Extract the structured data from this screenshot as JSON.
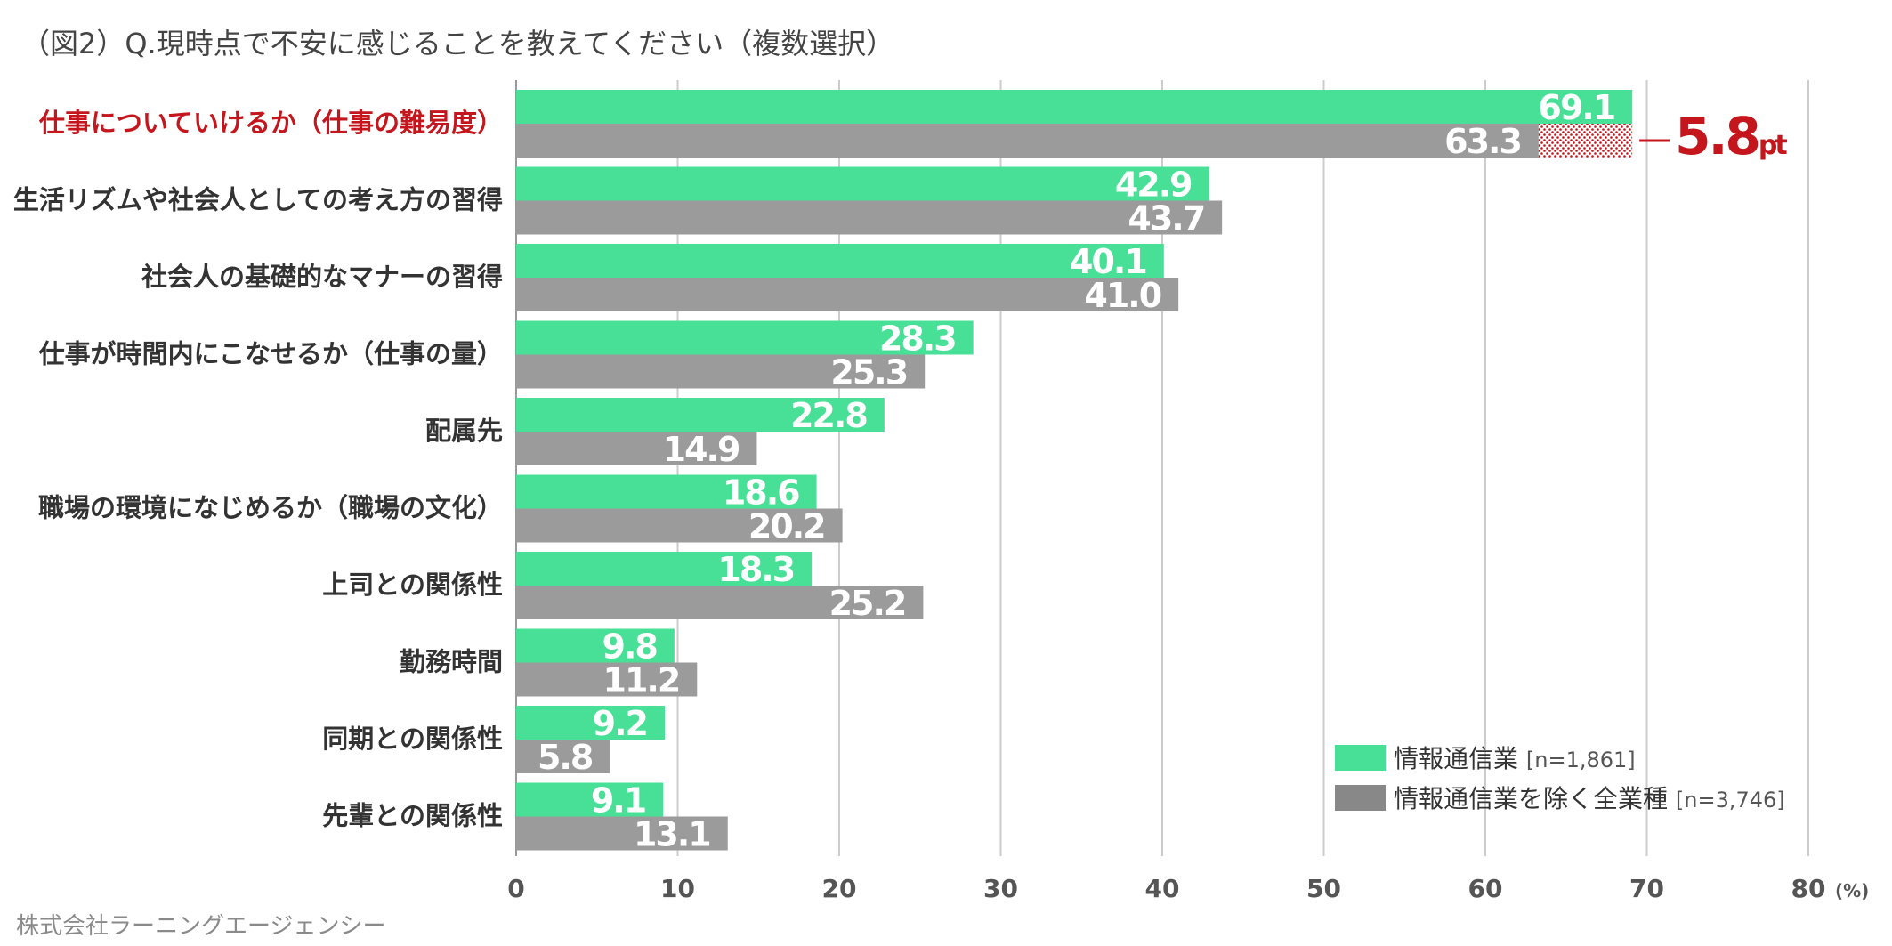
{
  "title": "（図2）Q.現時点で不安に感じることを教えてください（複数選択）",
  "credit": "株式会社ラーニングエージェンシー",
  "colors": {
    "series1": "#48e096",
    "series2": "#9b9b9b",
    "legend2": "#888888",
    "highlight": "#c4161c",
    "grid": "#cccccc"
  },
  "chart_data": {
    "type": "bar",
    "orientation": "horizontal",
    "categories": [
      "仕事についていけるか（仕事の難易度）",
      "生活リズムや社会人としての考え方の習得",
      "社会人の基礎的なマナーの習得",
      "仕事が時間内にこなせるか（仕事の量）",
      "配属先",
      "職場の環境になじめるか（職場の文化）",
      "上司との関係性",
      "勤務時間",
      "同期との関係性",
      "先輩との関係性"
    ],
    "series": [
      {
        "name": "情報通信業",
        "n": "[n=1,861]",
        "values": [
          69.1,
          42.9,
          40.1,
          28.3,
          22.8,
          18.6,
          18.3,
          9.8,
          9.2,
          9.1
        ]
      },
      {
        "name": "情報通信業を除く全業種",
        "n": "[n=3,746]",
        "values": [
          63.3,
          43.7,
          41.0,
          25.3,
          14.9,
          20.2,
          25.2,
          11.2,
          5.8,
          13.1
        ]
      }
    ],
    "value_labels": [
      [
        "69.1",
        "42.9",
        "40.1",
        "28.3",
        "22.8",
        "18.6",
        "18.3",
        "9.8",
        "9.2",
        "9.1"
      ],
      [
        "63.3",
        "43.7",
        "41.0",
        "25.3",
        "14.9",
        "20.2",
        "25.2",
        "11.2",
        "5.8",
        "13.1"
      ]
    ],
    "xlim": [
      0,
      80
    ],
    "xticks": [
      "0",
      "10",
      "20",
      "30",
      "40",
      "50",
      "60",
      "70",
      "80"
    ],
    "x_unit": "(%)",
    "grid": true,
    "legend": "bottom-right",
    "highlight_category_index": 0,
    "annotation": {
      "category_index": 0,
      "value": "5.8",
      "unit": "pt"
    }
  }
}
